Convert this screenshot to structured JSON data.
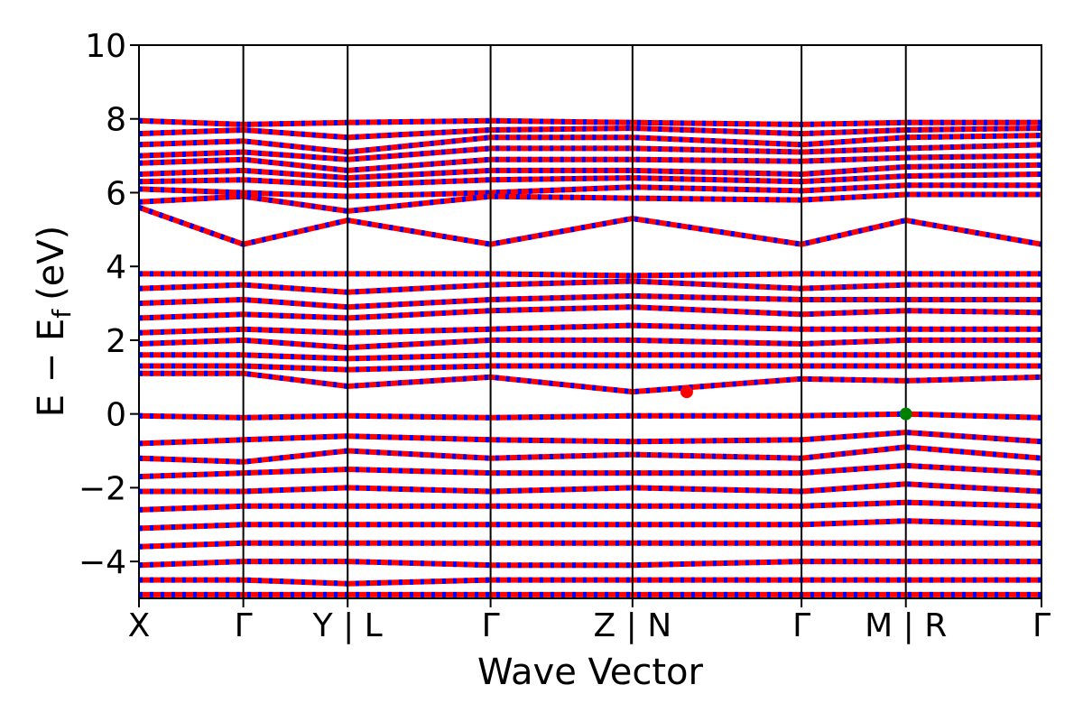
{
  "chart_data": {
    "type": "line",
    "title": "",
    "xlabel": "Wave Vector",
    "ylabel": "E − E",
    "ylabel_subscript": "f",
    "ylabel_unit": "(eV)",
    "ylim": [
      -5,
      10
    ],
    "yticks": [
      -4,
      -2,
      0,
      2,
      4,
      6,
      8,
      10
    ],
    "ytick_labels": [
      "−4",
      "−2",
      "0",
      "2",
      "4",
      "6",
      "8",
      "10"
    ],
    "grid": false,
    "legend": "none",
    "kpath_labels": [
      "X",
      "Γ",
      "Y | L",
      "Γ",
      "Z | N",
      "Γ",
      "M | R",
      "Γ"
    ],
    "kpath_positions": [
      0,
      1,
      2,
      3.37,
      4.73,
      6.35,
      7.35,
      8.65
    ],
    "series_colors": {
      "spin_up": "#0000ff",
      "spin_down": "#ff0000"
    },
    "highlight_points": [
      {
        "name": "CBM",
        "x": 5.25,
        "y": 0.6,
        "color": "#ff0000"
      },
      {
        "name": "VBM",
        "x": 7.35,
        "y": 0.0,
        "color": "#008000"
      }
    ],
    "bands": {
      "x": [
        0,
        1,
        2,
        3.37,
        4.73,
        6.35,
        7.35,
        8.65
      ],
      "conduction_high": [
        [
          7.95,
          7.85,
          7.9,
          7.95,
          7.9,
          7.85,
          7.9,
          7.9
        ],
        [
          7.6,
          7.7,
          7.5,
          7.7,
          7.75,
          7.6,
          7.7,
          7.75
        ],
        [
          7.3,
          7.4,
          7.1,
          7.5,
          7.5,
          7.3,
          7.5,
          7.55
        ],
        [
          7.0,
          7.1,
          6.9,
          7.2,
          7.2,
          7.1,
          7.2,
          7.3
        ],
        [
          6.8,
          6.9,
          6.6,
          6.9,
          6.9,
          6.85,
          6.95,
          7.0
        ],
        [
          6.5,
          6.6,
          6.4,
          6.6,
          6.6,
          6.5,
          6.7,
          6.75
        ],
        [
          6.3,
          6.35,
          6.2,
          6.35,
          6.4,
          6.3,
          6.45,
          6.5
        ],
        [
          6.1,
          6.0,
          5.9,
          6.0,
          6.15,
          6.05,
          6.2,
          6.2
        ],
        [
          5.75,
          5.9,
          5.5,
          5.9,
          5.85,
          5.8,
          5.95,
          5.95
        ],
        [
          5.6,
          4.6,
          5.25,
          4.6,
          5.3,
          4.6,
          5.25,
          4.6
        ]
      ],
      "conduction_low": [
        [
          3.8,
          3.8,
          3.8,
          3.8,
          3.75,
          3.8,
          3.8,
          3.8
        ],
        [
          3.4,
          3.5,
          3.3,
          3.5,
          3.6,
          3.4,
          3.5,
          3.5
        ],
        [
          3.0,
          3.1,
          2.9,
          3.1,
          3.2,
          3.1,
          3.1,
          3.1
        ],
        [
          2.6,
          2.7,
          2.6,
          2.8,
          2.9,
          2.7,
          2.8,
          2.75
        ],
        [
          2.2,
          2.3,
          2.2,
          2.3,
          2.4,
          2.3,
          2.3,
          2.3
        ],
        [
          1.9,
          2.0,
          1.8,
          2.0,
          2.0,
          1.9,
          2.0,
          2.0
        ],
        [
          1.6,
          1.6,
          1.5,
          1.6,
          1.6,
          1.6,
          1.6,
          1.6
        ],
        [
          1.3,
          1.3,
          1.2,
          1.3,
          1.3,
          1.3,
          1.3,
          1.3
        ],
        [
          1.1,
          1.1,
          0.75,
          1.0,
          0.6,
          0.95,
          0.9,
          1.0
        ]
      ],
      "valence": [
        [
          -0.05,
          -0.1,
          -0.05,
          -0.1,
          -0.05,
          -0.05,
          0.0,
          -0.1
        ],
        [
          -0.8,
          -0.7,
          -0.6,
          -0.7,
          -0.75,
          -0.7,
          -0.5,
          -0.75
        ],
        [
          -1.2,
          -1.3,
          -1.0,
          -1.2,
          -1.1,
          -1.2,
          -0.9,
          -1.2
        ],
        [
          -1.7,
          -1.6,
          -1.5,
          -1.6,
          -1.6,
          -1.6,
          -1.4,
          -1.6
        ],
        [
          -2.1,
          -2.1,
          -2.0,
          -2.1,
          -2.0,
          -2.1,
          -1.9,
          -2.1
        ],
        [
          -2.6,
          -2.5,
          -2.5,
          -2.5,
          -2.5,
          -2.5,
          -2.4,
          -2.5
        ],
        [
          -3.1,
          -3.0,
          -3.0,
          -3.0,
          -3.0,
          -3.0,
          -2.9,
          -3.0
        ],
        [
          -3.6,
          -3.5,
          -3.5,
          -3.5,
          -3.5,
          -3.5,
          -3.5,
          -3.5
        ],
        [
          -4.1,
          -4.0,
          -4.0,
          -4.1,
          -4.1,
          -4.0,
          -4.0,
          -4.0
        ],
        [
          -4.5,
          -4.5,
          -4.6,
          -4.5,
          -4.5,
          -4.5,
          -4.5,
          -4.5
        ],
        [
          -4.9,
          -4.9,
          -4.9,
          -4.9,
          -4.9,
          -4.9,
          -4.9,
          -4.9
        ]
      ]
    }
  }
}
